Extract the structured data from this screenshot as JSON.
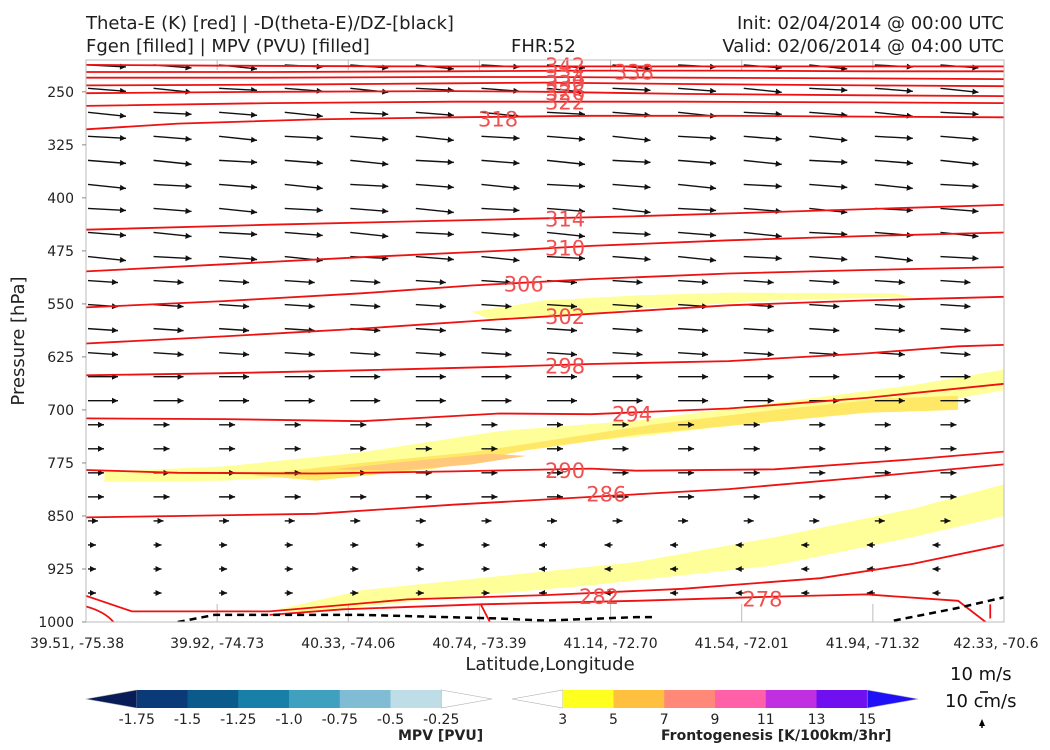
{
  "header": {
    "title_left_1": "Theta-E (K) [red] | -D(theta-E)/DZ-[black]",
    "title_left_2": "Fgen [filled] | MPV (PVU) [filled]",
    "fhr": "FHR:52",
    "init": "Init: 02/04/2014 @ 00:00 UTC",
    "valid": "Valid: 02/06/2014 @ 04:00 UTC"
  },
  "chart_data": {
    "type": "contour",
    "xlabel": "Latitude,Longitude",
    "ylabel": "Pressure [hPa]",
    "x_ticks": [
      "39.51, -75.38",
      "39.92, -74.73",
      "40.33, -74.06",
      "40.74, -73.39",
      "41.14, -72.70",
      "41.54, -72.01",
      "41.94, -71.32",
      "42.33, -70.6"
    ],
    "y_ticks": [
      250,
      325,
      400,
      475,
      550,
      625,
      700,
      775,
      850,
      925,
      1000
    ],
    "ylim": [
      1000,
      205
    ],
    "theta_e_contours": [
      {
        "label": "342",
        "points": [
          [
            0,
            212
          ],
          [
            0.15,
            213
          ],
          [
            0.35,
            214
          ],
          [
            0.5,
            214
          ],
          [
            0.7,
            214
          ],
          [
            0.9,
            214
          ],
          [
            1,
            214
          ]
        ]
      },
      {
        "label": "338",
        "points": [
          [
            0,
            222
          ],
          [
            0.2,
            222
          ],
          [
            0.4,
            221
          ],
          [
            0.55,
            220
          ],
          [
            0.7,
            220
          ],
          [
            0.85,
            221
          ],
          [
            1,
            221
          ]
        ]
      },
      {
        "label": "334",
        "points": [
          [
            0,
            230
          ],
          [
            0.2,
            230
          ],
          [
            0.4,
            229
          ],
          [
            0.5,
            229
          ],
          [
            0.65,
            230
          ],
          [
            0.85,
            231
          ],
          [
            1,
            232
          ]
        ]
      },
      {
        "label": "330",
        "points": [
          [
            0,
            241
          ],
          [
            0.2,
            240
          ],
          [
            0.4,
            238
          ],
          [
            0.5,
            237
          ],
          [
            0.65,
            239
          ],
          [
            0.85,
            241
          ],
          [
            1,
            242
          ]
        ]
      },
      {
        "label": "326",
        "points": [
          [
            0,
            252
          ],
          [
            0.2,
            250
          ],
          [
            0.4,
            249
          ],
          [
            0.5,
            250
          ],
          [
            0.65,
            253
          ],
          [
            0.85,
            255
          ],
          [
            1,
            256
          ]
        ]
      },
      {
        "label": "322",
        "points": [
          [
            0,
            270
          ],
          [
            0.2,
            266
          ],
          [
            0.4,
            264
          ],
          [
            0.5,
            264
          ],
          [
            0.65,
            264
          ],
          [
            0.85,
            265
          ],
          [
            1,
            266
          ]
        ]
      },
      {
        "label": "318",
        "points": [
          [
            0,
            303
          ],
          [
            0.1,
            295
          ],
          [
            0.25,
            289
          ],
          [
            0.4,
            286
          ],
          [
            0.55,
            284
          ],
          [
            0.7,
            284
          ],
          [
            0.85,
            285
          ],
          [
            1,
            286
          ]
        ]
      },
      {
        "label": "314",
        "points": [
          [
            0,
            445
          ],
          [
            0.2,
            438
          ],
          [
            0.4,
            432
          ],
          [
            0.5,
            429
          ],
          [
            0.6,
            426
          ],
          [
            0.75,
            420
          ],
          [
            0.9,
            414
          ],
          [
            1,
            410
          ]
        ]
      },
      {
        "label": "310",
        "points": [
          [
            0,
            504
          ],
          [
            0.15,
            494
          ],
          [
            0.3,
            484
          ],
          [
            0.45,
            475
          ],
          [
            0.55,
            468
          ],
          [
            0.7,
            460
          ],
          [
            0.85,
            454
          ],
          [
            1,
            449
          ]
        ]
      },
      {
        "label": "306",
        "points": [
          [
            0,
            555
          ],
          [
            0.15,
            546
          ],
          [
            0.3,
            535
          ],
          [
            0.42,
            524
          ],
          [
            0.55,
            515
          ],
          [
            0.7,
            507
          ],
          [
            0.85,
            502
          ],
          [
            1,
            498
          ]
        ]
      },
      {
        "label": "302",
        "points": [
          [
            0,
            606
          ],
          [
            0.15,
            596
          ],
          [
            0.3,
            585
          ],
          [
            0.45,
            572
          ],
          [
            0.55,
            564
          ],
          [
            0.7,
            552
          ],
          [
            0.85,
            545
          ],
          [
            1,
            540
          ]
        ]
      },
      {
        "label": "298",
        "points": [
          [
            0,
            651
          ],
          [
            0.15,
            648
          ],
          [
            0.3,
            644
          ],
          [
            0.45,
            639
          ],
          [
            0.55,
            635
          ],
          [
            0.7,
            631
          ],
          [
            0.85,
            620
          ],
          [
            0.95,
            610
          ],
          [
            1,
            608
          ]
        ]
      },
      {
        "label": "294",
        "points": [
          [
            0,
            712
          ],
          [
            0.15,
            713
          ],
          [
            0.3,
            716
          ],
          [
            0.45,
            705
          ],
          [
            0.55,
            706
          ],
          [
            0.7,
            698
          ],
          [
            0.85,
            683
          ],
          [
            1,
            663
          ]
        ]
      },
      {
        "label": "290",
        "points": [
          [
            0,
            785
          ],
          [
            0.1,
            789
          ],
          [
            0.25,
            790
          ],
          [
            0.4,
            787
          ],
          [
            0.55,
            783
          ],
          [
            0.6,
            786
          ],
          [
            0.75,
            784
          ],
          [
            0.9,
            770
          ],
          [
            1,
            759
          ]
        ]
      },
      {
        "label": "286",
        "points": [
          [
            0,
            852
          ],
          [
            0.1,
            850
          ],
          [
            0.25,
            847
          ],
          [
            0.4,
            834
          ],
          [
            0.55,
            823
          ],
          [
            0.7,
            812
          ],
          [
            0.85,
            795
          ],
          [
            1,
            777
          ]
        ]
      },
      {
        "label": "282",
        "points": [
          [
            0,
            963
          ],
          [
            0.05,
            985
          ],
          [
            0.2,
            985
          ],
          [
            0.35,
            968
          ],
          [
            0.5,
            962
          ],
          [
            0.65,
            953
          ],
          [
            0.8,
            938
          ],
          [
            0.9,
            918
          ],
          [
            1,
            891
          ]
        ]
      },
      {
        "label": "278",
        "points": [
          [
            0.2,
            990
          ],
          [
            0.28,
            982
          ],
          [
            0.43,
            975
          ],
          [
            0.6,
            970
          ],
          [
            0.75,
            964
          ],
          [
            0.85,
            961
          ],
          [
            0.95,
            970
          ],
          [
            0.98,
            1000
          ]
        ]
      }
    ],
    "dashed_contour": [
      [
        0.1,
        1000
      ],
      [
        0.14,
        990
      ],
      [
        0.3,
        990
      ],
      [
        0.45,
        995
      ],
      [
        0.5,
        998
      ],
      [
        0.6,
        993
      ],
      [
        0.62,
        993
      ]
    ],
    "dashed_contour_2": [
      [
        0.88,
        998
      ],
      [
        0.95,
        980
      ],
      [
        1,
        965
      ]
    ],
    "fgen_regions": [
      {
        "level": 3,
        "color": "#ffff99",
        "points": [
          [
            0.02,
            787
          ],
          [
            0.15,
            780
          ],
          [
            0.3,
            760
          ],
          [
            0.45,
            730
          ],
          [
            0.6,
            715
          ],
          [
            0.75,
            690
          ],
          [
            0.9,
            665
          ],
          [
            1,
            643
          ],
          [
            1,
            672
          ],
          [
            0.9,
            695
          ],
          [
            0.75,
            715
          ],
          [
            0.6,
            738
          ],
          [
            0.45,
            755
          ],
          [
            0.3,
            790
          ],
          [
            0.15,
            800
          ],
          [
            0.02,
            802
          ]
        ]
      },
      {
        "level": 3,
        "color": "#ffff99",
        "points": [
          [
            0.42,
            561
          ],
          [
            0.5,
            545
          ],
          [
            0.6,
            538
          ],
          [
            0.7,
            534
          ],
          [
            0.88,
            535
          ],
          [
            0.9,
            540
          ],
          [
            0.75,
            545
          ],
          [
            0.6,
            557
          ],
          [
            0.5,
            570
          ],
          [
            0.44,
            572
          ]
        ]
      },
      {
        "level": 3,
        "color": "#ffff99",
        "points": [
          [
            0.2,
            985
          ],
          [
            0.3,
            955
          ],
          [
            0.45,
            935
          ],
          [
            0.6,
            915
          ],
          [
            0.75,
            880
          ],
          [
            0.9,
            840
          ],
          [
            1,
            805
          ],
          [
            1,
            850
          ],
          [
            0.9,
            880
          ],
          [
            0.75,
            920
          ],
          [
            0.55,
            948
          ],
          [
            0.4,
            965
          ],
          [
            0.25,
            985
          ]
        ]
      },
      {
        "level": 5,
        "color": "#ffe866",
        "points": [
          [
            0.18,
            792
          ],
          [
            0.3,
            775
          ],
          [
            0.42,
            760
          ],
          [
            0.52,
            740
          ],
          [
            0.62,
            720
          ],
          [
            0.75,
            700
          ],
          [
            0.87,
            684
          ],
          [
            0.95,
            680
          ],
          [
            0.95,
            700
          ],
          [
            0.85,
            704
          ],
          [
            0.73,
            719
          ],
          [
            0.6,
            735
          ],
          [
            0.48,
            757
          ],
          [
            0.38,
            783
          ],
          [
            0.25,
            800
          ]
        ]
      },
      {
        "level": 7,
        "color": "#ffc87a",
        "points": [
          [
            0.27,
            784
          ],
          [
            0.35,
            773
          ],
          [
            0.44,
            762
          ],
          [
            0.48,
            765
          ],
          [
            0.42,
            777
          ],
          [
            0.34,
            786
          ]
        ]
      }
    ],
    "arrow_grid_x": [
      0,
      0.0714,
      0.1428,
      0.2143,
      0.2857,
      0.3571,
      0.4286,
      0.5,
      0.5714,
      0.6428,
      0.7143,
      0.7857,
      0.8571,
      0.9286
    ],
    "arrow_grid_p": [
      212,
      245,
      279,
      313,
      347,
      381,
      415,
      449,
      483,
      517,
      551,
      585,
      619,
      653,
      687,
      721,
      755,
      789,
      823,
      857,
      891,
      925,
      959
    ],
    "annotation": "black arrows: -D(theta-E)/DZ vectors"
  },
  "colorbars": {
    "mpv": {
      "label": "MPV [PVU]",
      "ticks": [
        "-1.75",
        "-1.5",
        "-1.25",
        "-1.0",
        "-0.75",
        "-0.5",
        "-0.25"
      ],
      "colors": [
        "#081d58",
        "#0b3a78",
        "#0a5a8c",
        "#1880a8",
        "#40a0c0",
        "#80bcd4",
        "#bfdde6",
        "#ffffff"
      ]
    },
    "fgen": {
      "label": "Frontogenesis [K/100km/3hr]",
      "ticks": [
        "3",
        "5",
        "7",
        "9",
        "11",
        "13",
        "15"
      ],
      "colors": [
        "#ffffff",
        "#ffff20",
        "#ffc040",
        "#ff8878",
        "#ff60a8",
        "#c030e0",
        "#7010f0",
        "#2010f8"
      ]
    }
  },
  "reference_vector": {
    "h_label": "10 m/s",
    "v_label": "10 cm/s"
  }
}
